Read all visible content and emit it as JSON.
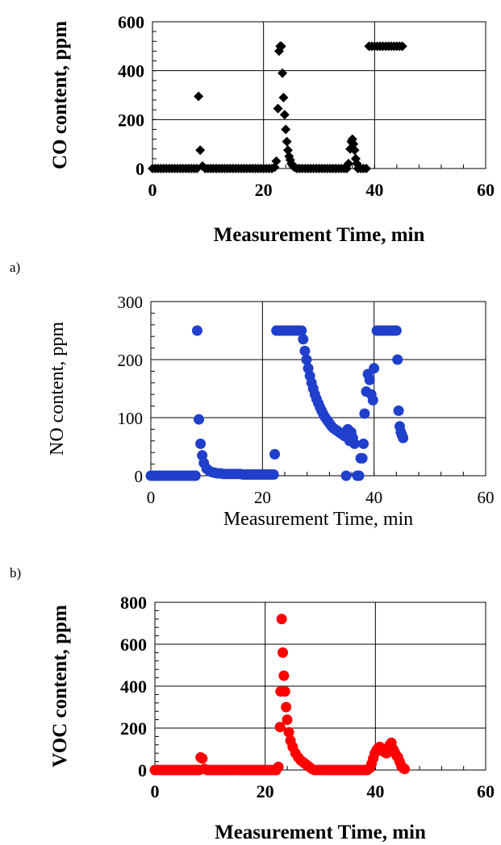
{
  "panel_labels": [
    "a)",
    "b)"
  ],
  "chart_data": [
    {
      "type": "scatter",
      "xlabel": "Measurement Time, min",
      "ylabel": "CO content, ppm",
      "xlim": [
        0,
        60
      ],
      "ylim": [
        0,
        600
      ],
      "xticks": [
        0,
        20,
        40,
        60
      ],
      "yticks": [
        0,
        200,
        400,
        600
      ],
      "grid": true,
      "marker": "diamond",
      "bold_labels": true,
      "color": "#000000",
      "series": [
        {
          "x": [
            0,
            0.5,
            1,
            1.5,
            2,
            2.5,
            3,
            3.5,
            4,
            4.5,
            5,
            5.5,
            6,
            6.5,
            7,
            7.5,
            8,
            8.3,
            8.6,
            9,
            9.5,
            10,
            10.5,
            11,
            11.5,
            12,
            12.5,
            13,
            13.5,
            14,
            14.5,
            15,
            15.5,
            16,
            16.5,
            17,
            17.5,
            18,
            18.5,
            19,
            19.5,
            20,
            20.5,
            21,
            21.5,
            22,
            22.3,
            22.6,
            22.8,
            23,
            23.2,
            23.4,
            23.6,
            23.8,
            24,
            24.2,
            24.4,
            24.6,
            24.8,
            25,
            25.3,
            25.6,
            26,
            26.5,
            27,
            27.5,
            28,
            28.5,
            29,
            29.5,
            30,
            30.5,
            31,
            31.5,
            32,
            32.5,
            33,
            33.5,
            34,
            34.5,
            35,
            35.3,
            35.6,
            35.8,
            36,
            36.2,
            36.4,
            36.6,
            36.8,
            37,
            37.5,
            38,
            38.5,
            39,
            39.5,
            40,
            40.5,
            41,
            41.5,
            42,
            42.5,
            43,
            43.5,
            44,
            44.5,
            45
          ],
          "y": [
            0,
            0,
            0,
            0,
            0,
            0,
            0,
            0,
            0,
            0,
            0,
            0,
            0,
            0,
            0,
            0,
            0,
            295,
            75,
            10,
            0,
            0,
            0,
            0,
            0,
            0,
            0,
            0,
            0,
            0,
            0,
            0,
            0,
            0,
            0,
            0,
            0,
            0,
            0,
            0,
            0,
            0,
            0,
            0,
            0,
            5,
            30,
            245,
            480,
            500,
            500,
            390,
            290,
            220,
            160,
            110,
            75,
            50,
            35,
            20,
            10,
            5,
            0,
            0,
            0,
            0,
            0,
            0,
            0,
            0,
            0,
            0,
            0,
            0,
            0,
            0,
            0,
            0,
            0,
            0,
            0,
            20,
            80,
            110,
            120,
            100,
            75,
            40,
            20,
            0,
            0,
            0,
            0,
            500,
            500,
            500,
            500,
            500,
            500,
            500,
            500,
            500,
            500,
            500,
            500,
            500
          ]
        }
      ]
    },
    {
      "type": "scatter",
      "xlabel": "Measurement Time, min",
      "ylabel": "NO content, ppm",
      "xlim": [
        0,
        60
      ],
      "ylim": [
        0,
        300
      ],
      "xticks": [
        0,
        20,
        40,
        60
      ],
      "yticks": [
        0,
        100,
        200,
        300
      ],
      "grid": true,
      "marker": "circle",
      "bold_labels": false,
      "color": "#1f3fcc",
      "series": [
        {
          "x": [
            0,
            0.5,
            1,
            1.5,
            2,
            2.5,
            3,
            3.5,
            4,
            4.5,
            5,
            5.5,
            6,
            6.5,
            7,
            7.5,
            8,
            8.3,
            8.6,
            8.9,
            9.2,
            9.5,
            10,
            10.5,
            11,
            11.5,
            12,
            12.5,
            13,
            13.5,
            14,
            14.5,
            15,
            15.5,
            16,
            16.5,
            17,
            17.5,
            18,
            18.5,
            19,
            19.5,
            20,
            20.5,
            21,
            21.5,
            22,
            22.2,
            22.5,
            23,
            23.5,
            24,
            24.5,
            25,
            25.5,
            26,
            26.5,
            27,
            27.3,
            27.6,
            27.9,
            28.2,
            28.5,
            28.8,
            29.1,
            29.4,
            29.7,
            30,
            30.3,
            30.6,
            30.9,
            31.2,
            31.5,
            31.8,
            32.1,
            32.4,
            32.7,
            33,
            33.3,
            33.6,
            33.9,
            34.2,
            34.5,
            34.8,
            35,
            35.3,
            35.6,
            35.9,
            36.2,
            36.5,
            37,
            37.3,
            37.6,
            37.9,
            38.1,
            38.3,
            38.6,
            38.9,
            39.2,
            39.5,
            39.8,
            40,
            40.5,
            41,
            41.5,
            42,
            42.5,
            43,
            43.5,
            44,
            44.2,
            44.4,
            44.6,
            44.8,
            45,
            45.2
          ],
          "y": [
            0,
            0,
            0,
            0,
            0,
            0,
            0,
            0,
            0,
            0,
            0,
            0,
            0,
            0,
            0,
            0,
            0,
            250,
            97,
            55,
            35,
            22,
            12,
            8,
            6,
            5,
            4,
            4,
            3,
            3,
            3,
            3,
            3,
            3,
            3,
            2,
            2,
            2,
            2,
            2,
            2,
            2,
            2,
            2,
            2,
            2,
            2,
            37,
            250,
            250,
            250,
            250,
            250,
            250,
            250,
            250,
            250,
            250,
            235,
            215,
            200,
            185,
            172,
            160,
            150,
            140,
            132,
            125,
            118,
            112,
            106,
            101,
            97,
            93,
            89,
            85,
            82,
            80,
            78,
            76,
            74,
            72,
            70,
            68,
            0,
            80,
            60,
            75,
            65,
            55,
            0,
            0,
            30,
            30,
            55,
            107,
            145,
            175,
            165,
            140,
            130,
            185,
            250,
            250,
            250,
            250,
            250,
            250,
            250,
            250,
            200,
            112,
            85,
            75,
            70,
            65
          ]
        }
      ]
    },
    {
      "type": "scatter",
      "xlabel": "Measurement Time, min",
      "ylabel": "VOC content, ppm",
      "xlim": [
        0,
        60
      ],
      "ylim": [
        0,
        800
      ],
      "xticks": [
        0,
        20,
        40,
        60
      ],
      "yticks": [
        0,
        200,
        400,
        600,
        800
      ],
      "grid": true,
      "marker": "circle",
      "bold_labels": true,
      "color": "#ff0000",
      "series": [
        {
          "x": [
            0,
            0.5,
            1,
            1.5,
            2,
            2.5,
            3,
            3.5,
            4,
            4.5,
            5,
            5.5,
            6,
            6.5,
            7,
            7.5,
            8,
            8.3,
            8.6,
            9,
            9.5,
            10,
            10.5,
            11,
            11.5,
            12,
            12.5,
            13,
            13.5,
            14,
            14.5,
            15,
            15.5,
            16,
            16.5,
            17,
            17.5,
            18,
            18.5,
            19,
            19.5,
            20,
            20.5,
            21,
            21.5,
            22,
            22.4,
            22.7,
            22.8,
            23,
            23.2,
            23.4,
            23.6,
            23.8,
            24,
            24.3,
            24.6,
            25,
            25.5,
            26,
            26.5,
            27,
            27.5,
            28,
            28.5,
            29,
            29.5,
            30,
            30.5,
            31,
            31.5,
            32,
            32.5,
            33,
            33.5,
            34,
            34.5,
            35,
            35.5,
            36,
            36.5,
            37,
            37.5,
            38,
            38.5,
            39,
            39.3,
            39.6,
            39.9,
            40.2,
            40.5,
            40.8,
            41.1,
            41.4,
            41.7,
            42,
            42.3,
            42.6,
            42.9,
            43.2,
            43.5,
            43.8,
            44.1,
            44.4,
            44.7,
            45,
            45.3
          ],
          "y": [
            0,
            0,
            0,
            0,
            0,
            0,
            0,
            0,
            0,
            0,
            0,
            0,
            0,
            0,
            0,
            0,
            0,
            60,
            55,
            5,
            0,
            0,
            0,
            0,
            0,
            0,
            0,
            0,
            0,
            0,
            0,
            0,
            0,
            0,
            0,
            0,
            0,
            0,
            0,
            0,
            0,
            0,
            0,
            0,
            0,
            0,
            15,
            205,
            375,
            720,
            560,
            450,
            375,
            300,
            240,
            180,
            140,
            110,
            80,
            60,
            45,
            35,
            25,
            15,
            5,
            0,
            0,
            0,
            0,
            0,
            0,
            0,
            0,
            0,
            0,
            0,
            0,
            0,
            0,
            0,
            0,
            0,
            0,
            0,
            0,
            10,
            30,
            55,
            80,
            95,
            105,
            110,
            100,
            90,
            85,
            80,
            95,
            120,
            130,
            100,
            85,
            70,
            60,
            40,
            20,
            10,
            5
          ]
        }
      ]
    }
  ]
}
